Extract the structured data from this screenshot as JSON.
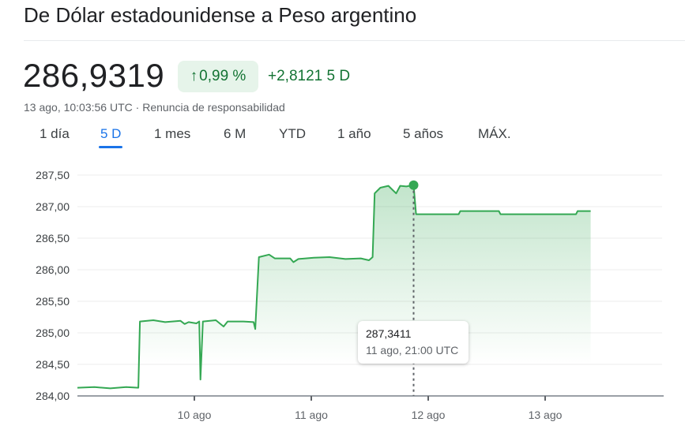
{
  "header": {
    "title": "De Dólar estadounidense a Peso argentino",
    "price": "286,9319",
    "change_pct": "0,99 %",
    "change_abs": "+2,8121",
    "change_period": "5 D",
    "timestamp": "13 ago, 10:03:56 UTC",
    "separator": "·",
    "disclaimer": "Renuncia de responsabilidad",
    "up_icon": "arrow-up-icon"
  },
  "tabs": [
    {
      "label": "1 día",
      "active": false
    },
    {
      "label": "5 D",
      "active": true
    },
    {
      "label": "1 mes",
      "active": false
    },
    {
      "label": "6 M",
      "active": false
    },
    {
      "label": "YTD",
      "active": false
    },
    {
      "label": "1 año",
      "active": false
    },
    {
      "label": "5 años",
      "active": false
    },
    {
      "label": "MÁX.",
      "active": false
    }
  ],
  "tooltip": {
    "value": "287,3411",
    "date": "11 ago, 21:00 UTC"
  },
  "colors": {
    "line": "#34a853",
    "positive": "#137333",
    "accent": "#1a73e8"
  },
  "chart_data": {
    "type": "area",
    "xlim": [
      "08-09 00:00",
      "08-14 00:00"
    ],
    "ylim": [
      284.0,
      287.5
    ],
    "yticks": [
      284.0,
      284.5,
      285.0,
      285.5,
      286.0,
      286.5,
      287.0,
      287.5
    ],
    "ytick_labels": [
      "284,00",
      "284,50",
      "285,00",
      "285,50",
      "286,00",
      "286,50",
      "287,00",
      "287,50"
    ],
    "xticks": [
      "08-10 00:00",
      "08-11 00:00",
      "08-12 00:00",
      "08-13 00:00"
    ],
    "xtick_labels": [
      "10 ago",
      "11 ago",
      "12 ago",
      "13 ago"
    ],
    "grid": true,
    "highlight": {
      "x": "08-11 21:00",
      "y": 287.3411
    },
    "points": [
      [
        "08-09 00:00",
        284.13
      ],
      [
        "08-09 03:30",
        284.14
      ],
      [
        "08-09 06:45",
        284.12
      ],
      [
        "08-09 10:00",
        284.14
      ],
      [
        "08-09 12:30",
        284.13
      ],
      [
        "08-09 12:50",
        285.18
      ],
      [
        "08-09 15:35",
        285.2
      ],
      [
        "08-09 18:00",
        285.17
      ],
      [
        "08-09 21:10",
        285.19
      ],
      [
        "08-09 22:00",
        285.14
      ],
      [
        "08-09 22:50",
        285.17
      ],
      [
        "08-10 00:25",
        285.15
      ],
      [
        "08-10 01:00",
        285.18
      ],
      [
        "08-10 01:15",
        284.26
      ],
      [
        "08-10 01:45",
        285.18
      ],
      [
        "08-10 04:25",
        285.2
      ],
      [
        "08-10 06:00",
        285.1
      ],
      [
        "08-10 06:50",
        285.18
      ],
      [
        "08-10 10:05",
        285.18
      ],
      [
        "08-10 12:10",
        285.17
      ],
      [
        "08-10 12:30",
        285.06
      ],
      [
        "08-10 13:15",
        286.2
      ],
      [
        "08-10 15:20",
        286.24
      ],
      [
        "08-10 16:30",
        286.18
      ],
      [
        "08-10 19:40",
        286.18
      ],
      [
        "08-10 20:20",
        286.12
      ],
      [
        "08-10 21:20",
        286.17
      ],
      [
        "08-11 00:30",
        286.19
      ],
      [
        "08-11 03:45",
        286.2
      ],
      [
        "08-11 07:00",
        286.17
      ],
      [
        "08-11 10:10",
        286.18
      ],
      [
        "08-11 11:50",
        286.15
      ],
      [
        "08-11 12:35",
        286.2
      ],
      [
        "08-11 13:00",
        287.21
      ],
      [
        "08-11 14:10",
        287.3
      ],
      [
        "08-11 15:50",
        287.33
      ],
      [
        "08-11 17:25",
        287.21
      ],
      [
        "08-11 18:15",
        287.33
      ],
      [
        "08-11 19:30",
        287.32
      ],
      [
        "08-11 21:00",
        287.3411
      ],
      [
        "08-11 21:30",
        286.88
      ],
      [
        "08-12 06:15",
        286.88
      ],
      [
        "08-12 06:35",
        286.93
      ],
      [
        "08-12 14:30",
        286.93
      ],
      [
        "08-12 14:50",
        286.88
      ],
      [
        "08-13 06:20",
        286.88
      ],
      [
        "08-13 06:40",
        286.93
      ],
      [
        "08-13 09:20",
        286.93
      ]
    ]
  }
}
